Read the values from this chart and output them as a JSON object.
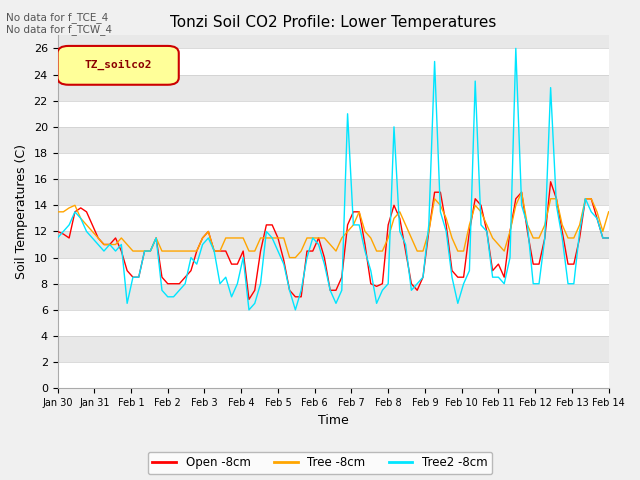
{
  "title": "Tonzi Soil CO2 Profile: Lower Temperatures",
  "xlabel": "Time",
  "ylabel": "Soil Temperatures (C)",
  "no_data_text": [
    "No data for f_TCE_4",
    "No data for f_TCW_4"
  ],
  "legend_box_label": "TZ_soilco2",
  "legend_entries": [
    "Open -8cm",
    "Tree -8cm",
    "Tree2 -8cm"
  ],
  "line_colors": [
    "#ff0000",
    "#ffa500",
    "#00e5ff"
  ],
  "ylim": [
    0,
    27
  ],
  "yticks": [
    0,
    2,
    4,
    6,
    8,
    10,
    12,
    14,
    16,
    18,
    20,
    22,
    24,
    26
  ],
  "x_tick_labels": [
    "Jan 30",
    "Jan 31",
    "Feb 1",
    "Feb 2",
    "Feb 3",
    "Feb 4",
    "Feb 5",
    "Feb 6",
    "Feb 7",
    "Feb 8",
    "Feb 9",
    "Feb 10",
    "Feb 11",
    "Feb 12",
    "Feb 13",
    "Feb 14"
  ],
  "bg_color_light": "#f0f0f0",
  "bg_color_dark": "#e0e0e0",
  "grid_color": "#ffffff",
  "fig_bg": "#f0f0f0",
  "open_8cm": [
    12.0,
    11.8,
    11.5,
    13.5,
    13.8,
    13.5,
    12.5,
    11.5,
    11.0,
    11.0,
    11.5,
    10.5,
    9.0,
    8.5,
    8.5,
    10.5,
    10.5,
    11.5,
    8.5,
    8.0,
    8.0,
    8.0,
    8.5,
    9.0,
    10.5,
    11.5,
    12.0,
    10.5,
    10.5,
    10.5,
    9.5,
    9.5,
    10.5,
    6.8,
    7.5,
    10.5,
    12.5,
    12.5,
    11.5,
    9.8,
    7.5,
    7.0,
    7.0,
    10.5,
    10.5,
    11.5,
    10.0,
    7.5,
    7.5,
    8.5,
    12.5,
    13.5,
    13.5,
    11.0,
    8.0,
    7.8,
    8.0,
    12.5,
    14.0,
    13.0,
    10.5,
    8.0,
    7.5,
    8.5,
    12.0,
    15.0,
    15.0,
    12.5,
    9.0,
    8.5,
    8.5,
    12.0,
    14.5,
    14.0,
    12.0,
    9.0,
    9.5,
    8.5,
    12.0,
    14.5,
    15.0,
    12.0,
    9.5,
    9.5,
    11.5,
    15.8,
    14.5,
    12.0,
    9.5,
    9.5,
    11.5,
    14.5,
    14.5,
    13.0,
    11.5,
    11.5
  ],
  "tree_8cm": [
    13.5,
    13.5,
    13.8,
    14.0,
    13.0,
    12.5,
    12.0,
    11.5,
    11.0,
    11.0,
    11.0,
    11.5,
    11.0,
    10.5,
    10.5,
    10.5,
    10.5,
    11.5,
    10.5,
    10.5,
    10.5,
    10.5,
    10.5,
    10.5,
    10.5,
    11.5,
    12.0,
    10.5,
    10.5,
    11.5,
    11.5,
    11.5,
    11.5,
    10.5,
    10.5,
    11.5,
    11.5,
    11.5,
    11.5,
    11.5,
    10.0,
    10.0,
    10.5,
    11.5,
    11.5,
    11.5,
    11.5,
    11.0,
    10.5,
    11.5,
    12.0,
    12.5,
    13.5,
    12.0,
    11.5,
    10.5,
    10.5,
    11.5,
    13.0,
    13.5,
    12.5,
    11.5,
    10.5,
    10.5,
    12.0,
    14.5,
    14.0,
    13.0,
    11.5,
    10.5,
    10.5,
    12.5,
    14.0,
    13.5,
    12.5,
    11.5,
    11.0,
    10.5,
    12.0,
    14.0,
    15.0,
    12.5,
    11.5,
    11.5,
    12.5,
    14.5,
    14.5,
    12.5,
    11.5,
    11.5,
    12.5,
    14.5,
    14.5,
    13.5,
    12.0,
    13.5
  ],
  "tree2_8cm": [
    11.5,
    12.0,
    12.5,
    13.5,
    13.0,
    12.0,
    11.5,
    11.0,
    10.5,
    11.0,
    10.5,
    11.0,
    6.5,
    8.5,
    8.5,
    10.5,
    10.5,
    11.5,
    7.5,
    7.0,
    7.0,
    7.5,
    8.0,
    10.0,
    9.5,
    11.0,
    11.5,
    10.5,
    8.0,
    8.5,
    7.0,
    8.0,
    10.0,
    6.0,
    6.5,
    8.0,
    12.0,
    11.5,
    10.5,
    9.5,
    7.5,
    6.0,
    7.5,
    10.0,
    11.5,
    11.0,
    9.5,
    7.5,
    6.5,
    7.5,
    21.0,
    12.5,
    12.5,
    10.5,
    9.0,
    6.5,
    7.5,
    8.0,
    20.0,
    12.0,
    11.0,
    7.5,
    8.0,
    8.5,
    12.5,
    25.0,
    13.5,
    12.0,
    8.5,
    6.5,
    8.0,
    9.0,
    23.5,
    12.5,
    12.0,
    8.5,
    8.5,
    8.0,
    10.0,
    26.0,
    14.0,
    12.5,
    8.0,
    8.0,
    11.5,
    23.0,
    14.0,
    11.5,
    8.0,
    8.0,
    12.0,
    14.5,
    13.5,
    13.0,
    11.5,
    11.5
  ]
}
